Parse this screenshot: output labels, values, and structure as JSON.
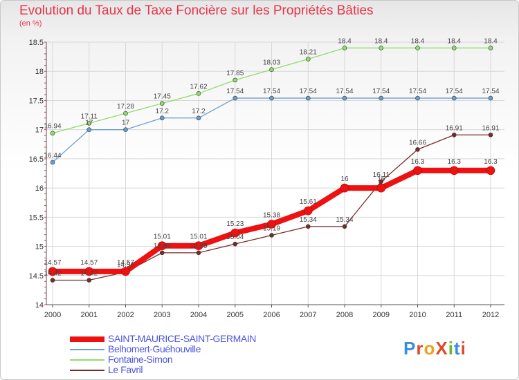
{
  "title": "Evolution du Taux de Taxe Foncière sur les Propriétés Bâties",
  "unit_label": "(en %)",
  "logo": {
    "text": "ProXiti",
    "letter_colors": [
      "#3a8ee0",
      "#e04a2a",
      "#f0a020",
      "#e04a2a",
      "#68b830",
      "#3a8ee0",
      "#e04a2a"
    ]
  },
  "colors": {
    "axis": "#555555",
    "grid": "#d8d8d8",
    "minor_tick": "#e8344a"
  },
  "chart_data": {
    "type": "line",
    "title": "Evolution du Taux de Taxe Foncière sur les Propriétés Bâties",
    "ylabel": "(en %)",
    "xlabel": "",
    "categories": [
      "2000",
      "2001",
      "2002",
      "2003",
      "2004",
      "2005",
      "2006",
      "2007",
      "2008",
      "2009",
      "2010",
      "2011",
      "2012"
    ],
    "ylim": [
      14,
      18.5
    ],
    "yticks": [
      14,
      14.5,
      15,
      15.5,
      16,
      16.5,
      17,
      17.5,
      18,
      18.5
    ],
    "grid": true,
    "legend_position": "bottom-left",
    "series": [
      {
        "name": "SAINT-MAURICE-SAINT-GERMAIN",
        "color": "#ee1111",
        "values": [
          14.57,
          14.57,
          14.57,
          15.01,
          15.01,
          15.23,
          15.38,
          15.61,
          16,
          16,
          16.3,
          16.3,
          16.3
        ],
        "labels": [
          "14.57",
          "14.57",
          "14.57",
          "15.01",
          "15.01",
          "15.23",
          "15.38",
          "15.61",
          "16",
          "16",
          "16.3",
          "16.3",
          "16.3"
        ]
      },
      {
        "name": "Belhomert-Guéhouville",
        "color": "#6a9fcf",
        "values": [
          16.44,
          17,
          17,
          17.2,
          17.2,
          17.54,
          17.54,
          17.54,
          17.54,
          17.54,
          17.54,
          17.54,
          17.54
        ],
        "labels": [
          "16.44",
          "17",
          "17",
          "17.2",
          "17.2",
          "17.54",
          "17.54",
          "17.54",
          "17.54",
          "17.54",
          "17.54",
          "17.54",
          "17.54"
        ]
      },
      {
        "name": "Fontaine-Simon",
        "color": "#8fdc6a",
        "values": [
          16.94,
          17.11,
          17.28,
          17.45,
          17.62,
          17.85,
          18.03,
          18.21,
          18.4,
          18.4,
          18.4,
          18.4,
          18.4
        ],
        "labels": [
          "16.94",
          "17.11",
          "17.28",
          "17.45",
          "17.62",
          "17.85",
          "18.03",
          "18.21",
          "18.4",
          "18.4",
          "18.4",
          "18.4",
          "18.4"
        ]
      },
      {
        "name": "Le Favril",
        "color": "#7a2a2a",
        "values": [
          14.42,
          14.42,
          14.56,
          14.89,
          14.89,
          15.04,
          15.19,
          15.34,
          15.34,
          16.11,
          16.66,
          16.91,
          16.91
        ],
        "labels": [
          "14.42",
          "14.42",
          "14.56",
          "14.89",
          "14.89",
          "15.04",
          "15.19",
          "15.34",
          "15.34",
          "16.11",
          "16.66",
          "16.91",
          "16.91"
        ]
      }
    ]
  }
}
